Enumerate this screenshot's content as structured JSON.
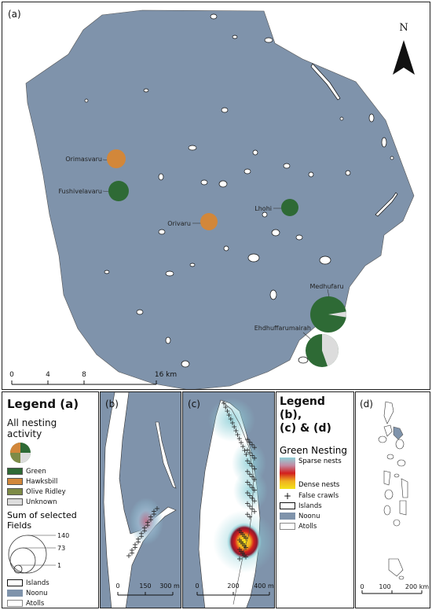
{
  "panel_a": {
    "tag": "(a)",
    "north": "N",
    "scale_labels": [
      "0",
      "4",
      "8",
      "16 km"
    ],
    "sites": [
      {
        "name": "Orimasvaru",
        "type": "Hawksbill"
      },
      {
        "name": "Fushivelavaru",
        "type": "Green"
      },
      {
        "name": "Orivaru",
        "type": "Hawksbill"
      },
      {
        "name": "Lhohi",
        "type": "Green"
      },
      {
        "name": "Medhufaru",
        "type": "Green",
        "green_fraction": 0.95
      },
      {
        "name": "Ehdhuffarumairah",
        "type": "Green",
        "green_fraction": 0.7
      }
    ]
  },
  "legend_a": {
    "title": "Legend (a)",
    "subtitle": "All nesting activity",
    "species": [
      {
        "label": "Green",
        "color": "#2e6a35"
      },
      {
        "label": "Hawksbill",
        "color": "#d2873a"
      },
      {
        "label": "Olive Ridley",
        "color": "#7e8b47"
      },
      {
        "label": "Unknown",
        "color": "#dcdcdc"
      }
    ],
    "size_title": "Sum of selected Fields",
    "size_values": [
      "140",
      "73",
      "1"
    ],
    "layers": [
      "Islands",
      "Noonu",
      "Atolls"
    ]
  },
  "panel_b": {
    "tag": "(b)",
    "scale_labels": [
      "0",
      "150",
      "300 m"
    ]
  },
  "panel_c": {
    "tag": "(c)",
    "scale_labels": [
      "0",
      "200",
      "400 m"
    ]
  },
  "legend_bcd": {
    "title_line1": "Legend (b),",
    "title_line2": "(c) & (d)",
    "subtitle": "Green Nesting",
    "sparse": "Sparse nests",
    "dense": "Dense nests",
    "crawls": "False crawls",
    "layers": [
      "Islands",
      "Noonu",
      "Atolls"
    ]
  },
  "panel_d": {
    "tag": "(d)",
    "scale_labels": [
      "0",
      "100",
      "200 km"
    ]
  },
  "colors": {
    "sea": "#7f93ab",
    "island": "#ffffff",
    "green": "#2e6a35",
    "hawksbill": "#d2873a",
    "unknown": "#dcdcdc"
  }
}
